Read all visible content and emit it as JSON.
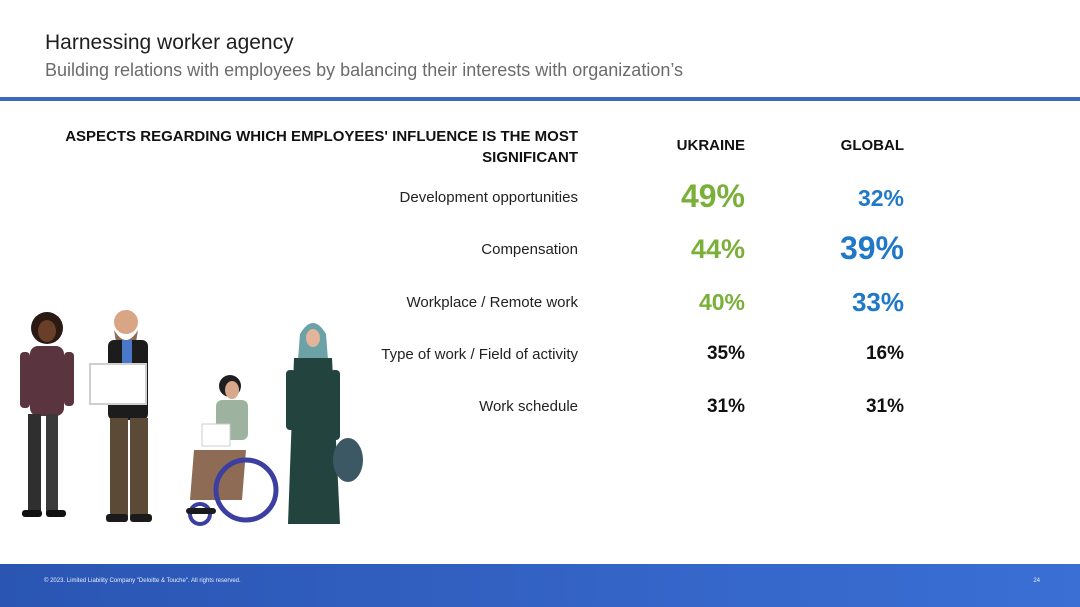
{
  "slide": {
    "title": "Harnessing worker agency",
    "subtitle": "Building relations with employees by balancing their interests with organization’s"
  },
  "table": {
    "header_aspects": "ASPECTS REGARDING WHICH EMPLOYEES' INFLUENCE IS THE MOST SIGNIFICANT",
    "header_ukraine": "UKRAINE",
    "header_global": "GLOBAL",
    "rows": [
      {
        "label": "Development opportunities",
        "ukraine": "49%",
        "global": "32%"
      },
      {
        "label": "Compensation",
        "ukraine": "44%",
        "global": "39%"
      },
      {
        "label": "Workplace / Remote work",
        "ukraine": "40%",
        "global": "33%"
      },
      {
        "label": "Type of work / Field of activity",
        "ukraine": "35%",
        "global": "16%"
      },
      {
        "label": "Work schedule",
        "ukraine": "31%",
        "global": "31%"
      }
    ]
  },
  "colors": {
    "accent_green": "#7ab03a",
    "accent_blue": "#1f78c8",
    "rule_blue": "#3a67bf",
    "footer_blue": "#2f5fc4",
    "text_dark": "#111111"
  },
  "footer": {
    "copyright": "© 2023. Limited Liability Company \"Deloitte & Touche\". All rights reserved.",
    "page_number": "24"
  }
}
